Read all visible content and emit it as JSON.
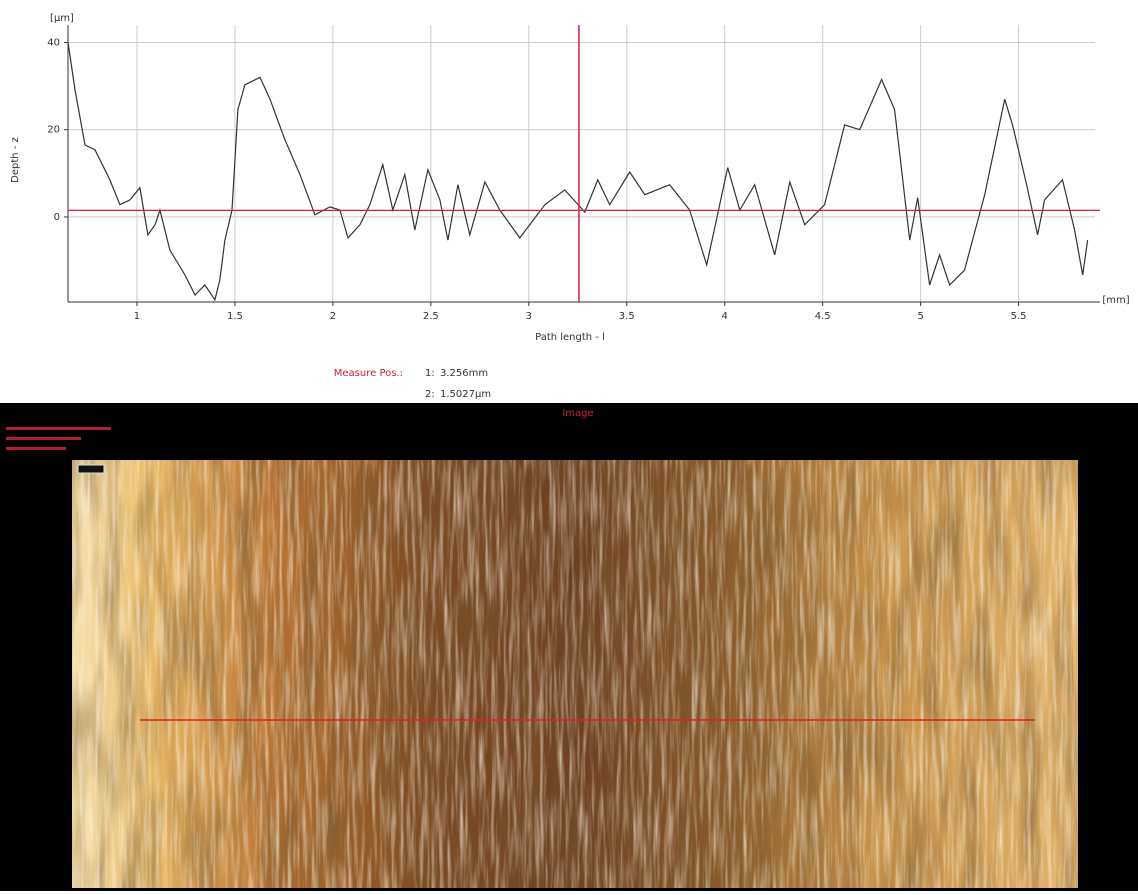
{
  "chart_data": {
    "type": "line",
    "y_unit": "[µm]",
    "x_unit": "[mm]",
    "ylabel": "Depth - z",
    "xlabel": "Path length - l",
    "xlim": [
      0.648,
      5.89
    ],
    "ylim": [
      -19.5,
      44
    ],
    "xticks": [
      1,
      1.5,
      2,
      2.5,
      3,
      3.5,
      4,
      4.5,
      5,
      5.5
    ],
    "yticks": [
      0,
      20,
      40
    ],
    "grid": true,
    "color": "#333333",
    "cursor_color": "#d0203a",
    "x": [
      0.648,
      0.684,
      0.735,
      0.786,
      0.862,
      0.913,
      0.964,
      1.015,
      1.056,
      1.092,
      1.117,
      1.168,
      1.245,
      1.296,
      1.347,
      1.398,
      1.423,
      1.449,
      1.485,
      1.515,
      1.551,
      1.628,
      1.679,
      1.755,
      1.832,
      1.908,
      1.985,
      2.036,
      2.077,
      2.138,
      2.189,
      2.255,
      2.306,
      2.367,
      2.418,
      2.485,
      2.546,
      2.587,
      2.638,
      2.699,
      2.776,
      2.852,
      2.954,
      3.082,
      3.184,
      3.286,
      3.352,
      3.413,
      3.515,
      3.592,
      3.719,
      3.821,
      3.908,
      4.015,
      4.077,
      4.153,
      4.255,
      4.332,
      4.408,
      4.51,
      4.612,
      4.689,
      4.801,
      4.867,
      4.944,
      4.985,
      5.046,
      5.097,
      5.148,
      5.224,
      5.327,
      5.429,
      5.469,
      5.505,
      5.541,
      5.597,
      5.633,
      5.724,
      5.786,
      5.827,
      5.852
    ],
    "values": [
      40,
      29,
      16.5,
      15.4,
      8.5,
      2.8,
      3.9,
      6.7,
      -4.1,
      -1.8,
      1.6,
      -7.6,
      -13.3,
      -17.9,
      -15.6,
      -19,
      -14.5,
      -5.3,
      1.6,
      24.6,
      30.3,
      32,
      27,
      17.7,
      9.7,
      0.5,
      2.3,
      1.6,
      -4.8,
      -1.8,
      2.8,
      12,
      1.6,
      9.7,
      -3,
      10.8,
      3.9,
      -5.3,
      7.4,
      -4.1,
      8,
      1.6,
      -4.8,
      2.8,
      6.2,
      1.1,
      8.5,
      2.8,
      10.3,
      5.1,
      7.4,
      1.6,
      -11,
      11.3,
      1.6,
      7.4,
      -8.7,
      8,
      -1.8,
      2.8,
      21.1,
      20,
      31.5,
      24.6,
      -5.3,
      4.4,
      -15.6,
      -8.7,
      -15.6,
      -12.2,
      5.1,
      27,
      21.1,
      14.3,
      7.4,
      -4.1,
      3.9,
      8.5,
      -3,
      -13.3,
      -5.3
    ],
    "cursor_title": "Measure Pos.:",
    "cursor": {
      "x": {
        "index": "1:",
        "value": 3.256,
        "label": "3.256mm"
      },
      "y": {
        "index": "2:",
        "value": 1.5027,
        "label": "1.5027µm"
      }
    }
  },
  "image_panel": {
    "title": "Image"
  }
}
